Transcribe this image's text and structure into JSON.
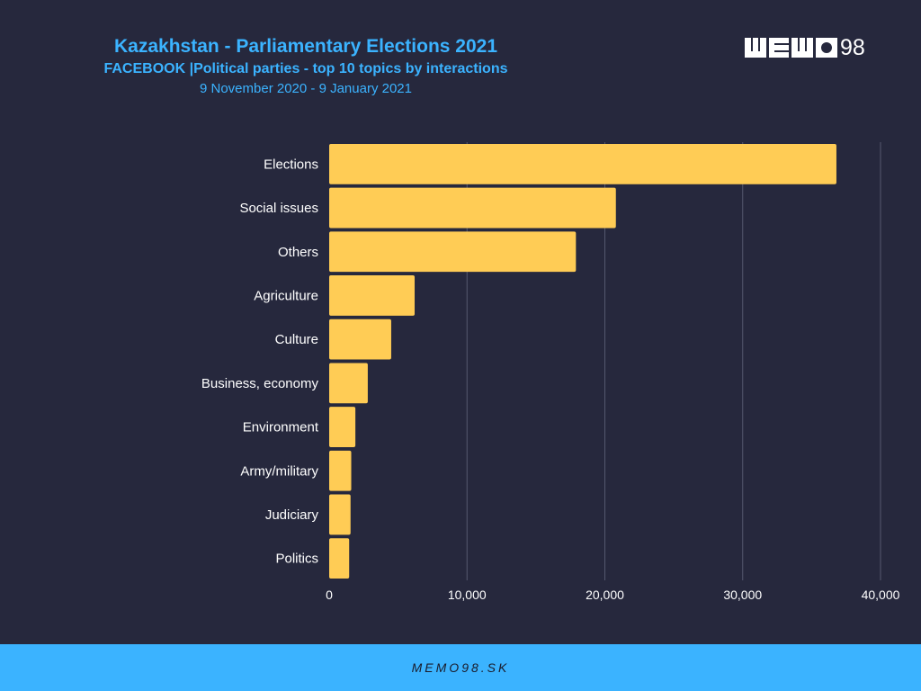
{
  "header": {
    "title": "Kazakhstan - Parliamentary Elections 2021",
    "subtitle": "FACEBOOK |Political parties - top 10 topics by interactions",
    "date_range": "9 November 2020 - 9 January 2021"
  },
  "logo": {
    "text": "MEMO98",
    "number": "98"
  },
  "footer": {
    "text": "MEMO98.SK"
  },
  "colors": {
    "background": "#26283d",
    "bar": "#ffcc55",
    "accent": "#3bb3ff",
    "gridline": "#55586e",
    "text": "#ffffff"
  },
  "chart_data": {
    "type": "bar",
    "orientation": "horizontal",
    "categories": [
      "Elections",
      "Social issues",
      "Others",
      "Agriculture",
      "Culture",
      "Business, economy",
      "Environment",
      "Army/military",
      "Judiciary",
      "Politics"
    ],
    "values": [
      36800,
      20800,
      17900,
      6200,
      4500,
      2800,
      1900,
      1600,
      1550,
      1450
    ],
    "xlim": [
      0,
      40000
    ],
    "xticks": [
      0,
      10000,
      20000,
      30000,
      40000
    ],
    "xtick_labels": [
      "0",
      "10,000",
      "20,000",
      "30,000",
      "40,000"
    ],
    "grid": true
  }
}
